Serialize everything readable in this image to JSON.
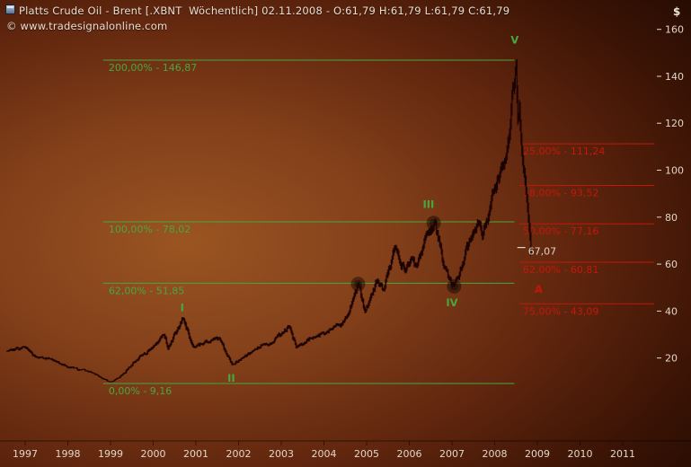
{
  "header": {
    "title": "Platts Crude Oil - Brent [.XBNT  Wöchentlich] 02.11.2008 - O:61,79 H:61,79 L:61,79 C:61,79",
    "copyright": "© www.tradesignalonline.com",
    "currency": "$"
  },
  "colors": {
    "green": "#46a83e",
    "red": "#c4170b",
    "text": "#e0d6c8",
    "bars": "#190402",
    "bars_halo": "#611a0c",
    "marker": "#ddd5c8"
  },
  "axes": {
    "y_ticks": [
      160,
      140,
      120,
      100,
      80,
      60,
      40,
      20
    ],
    "x_ticks": [
      "1997",
      "1998",
      "1999",
      "2000",
      "2001",
      "2002",
      "2003",
      "2004",
      "2005",
      "2006",
      "2007",
      "2008",
      "2009",
      "2010",
      "2011"
    ]
  },
  "fib_extension": {
    "note": "green Fibonacci extension of wave I (anchored at 1998 low 9,16)",
    "start_year": 1998.83,
    "end_year": 2008.46,
    "levels": [
      {
        "label": "200,00% - 146,87",
        "price": 146.87
      },
      {
        "label": "100,00% - 78,02",
        "price": 78.02
      },
      {
        "label": "62,00% - 51,85",
        "price": 51.85
      },
      {
        "label": "0,00% - 9,16",
        "price": 9.16
      }
    ]
  },
  "fib_retracement": {
    "note": "red Fibonacci retracement of the 2008 decline",
    "start_year": 2008.58,
    "end_x": 728,
    "levels": [
      {
        "label": "25,00% - 111,24",
        "price": 111.24
      },
      {
        "label": "38,00% - 93,52",
        "price": 93.52
      },
      {
        "label": "50,00% - 77,16",
        "price": 77.16
      },
      {
        "label": "62,00% - 60,81",
        "price": 60.81
      },
      {
        "label": "75,00% - 43,09",
        "price": 43.09
      }
    ]
  },
  "wave_labels_green": [
    {
      "text": "I",
      "year": 2000.68,
      "price": 41.5
    },
    {
      "text": "II",
      "year": 2001.83,
      "price": 11.5
    },
    {
      "text": "III",
      "year": 2006.45,
      "price": 85.5
    },
    {
      "text": "IV",
      "year": 2007.0,
      "price": 43.5
    },
    {
      "text": "V",
      "year": 2008.47,
      "price": 155.5
    }
  ],
  "wave_labels_red": [
    {
      "text": "A",
      "year": 2009.03,
      "price": 49.3
    }
  ],
  "pivot_circles": [
    {
      "year": 2004.8,
      "price": 51.5
    },
    {
      "year": 2006.57,
      "price": 77.5
    },
    {
      "year": 2007.05,
      "price": 50.5
    }
  ],
  "price_marker": {
    "label": "67,07",
    "price": 67.07,
    "year": 2008.53
  },
  "chart_data": {
    "type": "candlestick",
    "title": "Platts Crude Oil - Brent [.XBNT Wöchentlich]",
    "date_label": "02.11.2008",
    "last_bar": {
      "open": "61,79",
      "high": "61,79",
      "low": "61,79",
      "close": "61,79"
    },
    "y_unit": "$",
    "ylim": [
      0,
      170
    ],
    "xlim": [
      1996.5,
      2011.9
    ],
    "series_name": "Brent weekly close (approximate anchor points read from chart)",
    "x": [
      1996.58,
      1997.0,
      1997.25,
      1997.6,
      1998.0,
      1998.45,
      1998.75,
      1998.98,
      1999.2,
      1999.6,
      2000.05,
      2000.25,
      2000.35,
      2000.7,
      2000.95,
      2001.2,
      2001.55,
      2001.85,
      2002.1,
      2002.55,
      2002.8,
      2003.2,
      2003.35,
      2003.7,
      2004.05,
      2004.35,
      2004.6,
      2004.8,
      2004.97,
      2005.25,
      2005.4,
      2005.67,
      2005.9,
      2006.05,
      2006.15,
      2006.4,
      2006.6,
      2006.8,
      2007.05,
      2007.45,
      2007.6,
      2007.72,
      2007.95,
      2008.15,
      2008.3,
      2008.5,
      2008.545,
      2008.58,
      2008.64,
      2008.72,
      2008.79,
      2008.86
    ],
    "close": [
      23,
      24.5,
      20.5,
      19.5,
      16,
      14.5,
      12,
      9.8,
      11.5,
      19,
      25.5,
      30,
      24,
      37,
      24.5,
      26.5,
      28.5,
      17.2,
      20,
      25.5,
      26.5,
      33.5,
      24.5,
      28.5,
      31,
      34,
      40,
      51.5,
      39.5,
      53,
      49,
      67.5,
      56.5,
      63,
      59,
      72,
      78.2,
      59.5,
      50.5,
      71,
      78,
      71,
      91,
      101,
      110,
      146.9,
      120,
      127,
      108,
      94,
      80,
      61.8
    ]
  }
}
